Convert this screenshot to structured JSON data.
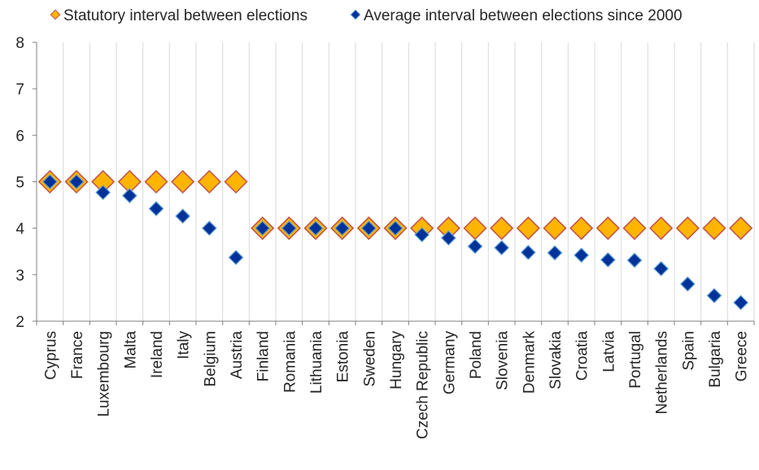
{
  "chart_data": {
    "type": "scatter",
    "categories": [
      "Cyprus",
      "France",
      "Luxembourg",
      "Malta",
      "Ireland",
      "Italy",
      "Belgium",
      "Austria",
      "Finland",
      "Romania",
      "Lithuania",
      "Estonia",
      "Sweden",
      "Hungary",
      "Czech Republic",
      "Germany",
      "Poland",
      "Slovenia",
      "Denmark",
      "Slovakia",
      "Croatia",
      "Latvia",
      "Portugal",
      "Netherlands",
      "Spain",
      "Bulgaria",
      "Greece"
    ],
    "series": [
      {
        "name": "Statutory interval between elections",
        "color": "#FFB400",
        "edge_color": "#C0504D",
        "marker": "diamond",
        "values": [
          5,
          5,
          5,
          5,
          5,
          5,
          5,
          5,
          4,
          4,
          4,
          4,
          4,
          4,
          4,
          4,
          4,
          4,
          4,
          4,
          4,
          4,
          4,
          4,
          4,
          4,
          4
        ]
      },
      {
        "name": "Average interval between elections since 2000",
        "color": "#003299",
        "edge_color": "#5B9BD5",
        "marker": "diamond",
        "values": [
          5,
          5,
          4.77,
          4.7,
          4.42,
          4.26,
          4,
          3.37,
          4,
          4,
          4,
          4,
          4,
          4,
          3.86,
          3.79,
          3.61,
          3.58,
          3.48,
          3.47,
          3.42,
          3.32,
          3.31,
          3.13,
          2.8,
          2.55,
          2.4
        ]
      }
    ],
    "ylim": [
      2,
      8
    ],
    "yticks": [
      "2",
      "3",
      "4",
      "5",
      "6",
      "7",
      "8"
    ],
    "grid": true,
    "legend_position": "top",
    "title": "",
    "xlabel": "",
    "ylabel": ""
  }
}
